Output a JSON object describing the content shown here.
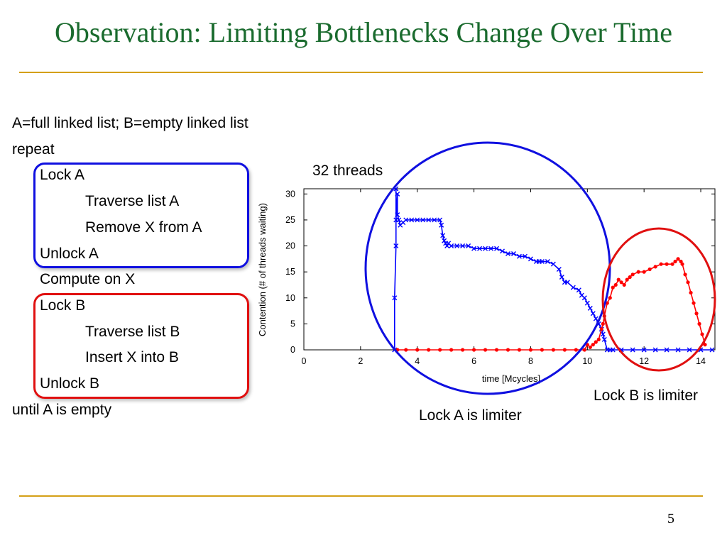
{
  "slide": {
    "title": "Observation: Limiting Bottlenecks Change Over Time",
    "page_number": "5"
  },
  "code": {
    "lines": [
      {
        "text": "A=full linked list; B=empty linked list",
        "indent": 0
      },
      {
        "text": "repeat",
        "indent": 0
      },
      {
        "text": "Lock A",
        "indent": 1
      },
      {
        "text": "Traverse list A",
        "indent": 2
      },
      {
        "text": "Remove X from A",
        "indent": 2
      },
      {
        "text": "Unlock A",
        "indent": 1
      },
      {
        "text": "Compute on X",
        "indent": 1
      },
      {
        "text": "Lock B",
        "indent": 1
      },
      {
        "text": "Traverse list B",
        "indent": 2
      },
      {
        "text": "Insert X into B",
        "indent": 2
      },
      {
        "text": "Unlock B",
        "indent": 1
      },
      {
        "text": "until A is empty",
        "indent": 0
      }
    ],
    "highlight_colors": {
      "lock_a_box": "#1010e0",
      "lock_b_box": "#e01010"
    }
  },
  "annotations": {
    "threads": "32 threads",
    "lock_a": "Lock A is limiter",
    "lock_b": "Lock B is limiter"
  },
  "chart_data": {
    "type": "scatter",
    "title": "",
    "xlabel": "time [Mcycles]",
    "ylabel": "Contention (# of threads waiting)",
    "xlim": [
      0,
      14.5
    ],
    "ylim": [
      0,
      31
    ],
    "xticks": [
      0,
      2,
      4,
      6,
      8,
      10,
      12,
      14
    ],
    "yticks": [
      0,
      5,
      10,
      15,
      20,
      25,
      30
    ],
    "grid": false,
    "legend": "none",
    "series": [
      {
        "color": "#0000ff",
        "marker": "x",
        "x": [
          3.2,
          3.2,
          3.25,
          3.25,
          3.25,
          3.3,
          3.3,
          3.35,
          3.4,
          3.5,
          3.6,
          3.8,
          4.0,
          4.2,
          4.4,
          4.6,
          4.8,
          4.85,
          4.9,
          4.95,
          5.0,
          5.05,
          5.1,
          5.2,
          5.4,
          5.6,
          5.8,
          6.0,
          6.2,
          6.4,
          6.6,
          6.8,
          7.0,
          7.2,
          7.4,
          7.6,
          7.8,
          8.0,
          8.2,
          8.3,
          8.4,
          8.6,
          8.8,
          9.0,
          9.1,
          9.2,
          9.3,
          9.5,
          9.7,
          9.8,
          9.9,
          10.0,
          10.1,
          10.2,
          10.3,
          10.4,
          10.5,
          10.55,
          10.6,
          10.7,
          10.8,
          10.9,
          11.2,
          11.6,
          12.0,
          12.4,
          12.8,
          13.2,
          13.6,
          14.0,
          14.4
        ],
        "y": [
          0,
          10,
          20,
          31,
          25,
          30,
          26,
          25,
          24,
          24.5,
          25,
          25,
          25,
          25,
          25,
          25,
          25,
          24,
          22,
          21,
          20.5,
          20,
          20.5,
          20,
          20,
          20,
          20,
          19.5,
          19.5,
          19.5,
          19.5,
          19.5,
          19,
          18.5,
          18.5,
          18,
          18,
          17.5,
          17,
          17,
          17,
          17,
          16.5,
          15.5,
          14,
          13,
          13,
          12,
          11.5,
          10.5,
          10,
          9,
          8,
          7,
          6,
          5,
          4,
          3,
          2,
          0,
          0,
          0,
          0,
          0,
          0,
          0,
          0,
          0,
          0,
          0,
          0
        ]
      },
      {
        "color": "#ff0000",
        "marker": "dot",
        "x": [
          3.3,
          3.6,
          4.0,
          4.4,
          4.8,
          5.2,
          5.6,
          6.0,
          6.4,
          6.8,
          7.2,
          7.6,
          8.0,
          8.4,
          8.8,
          9.2,
          9.6,
          9.9,
          10.0,
          10.1,
          10.2,
          10.3,
          10.4,
          10.5,
          10.55,
          10.6,
          10.7,
          10.8,
          10.9,
          11.0,
          11.1,
          11.2,
          11.3,
          11.4,
          11.5,
          11.6,
          11.8,
          12.0,
          12.2,
          12.4,
          12.6,
          12.8,
          13.0,
          13.1,
          13.2,
          13.3,
          13.35,
          13.45,
          13.55,
          13.65,
          13.75,
          13.85,
          13.95,
          14.05,
          14.15
        ],
        "y": [
          0,
          0,
          0,
          0,
          0,
          0,
          0,
          0,
          0,
          0,
          0,
          0,
          0,
          0,
          0,
          0,
          0,
          0,
          1,
          0.5,
          1,
          1.5,
          2,
          4,
          5,
          6.5,
          9,
          10,
          12,
          12.5,
          13.5,
          13,
          12.5,
          13.5,
          14,
          14.5,
          15,
          15,
          15.5,
          16,
          16.5,
          16.5,
          16.5,
          17,
          17.5,
          17,
          16.5,
          14.5,
          13,
          11,
          9,
          7,
          5,
          3,
          1
        ]
      }
    ]
  }
}
